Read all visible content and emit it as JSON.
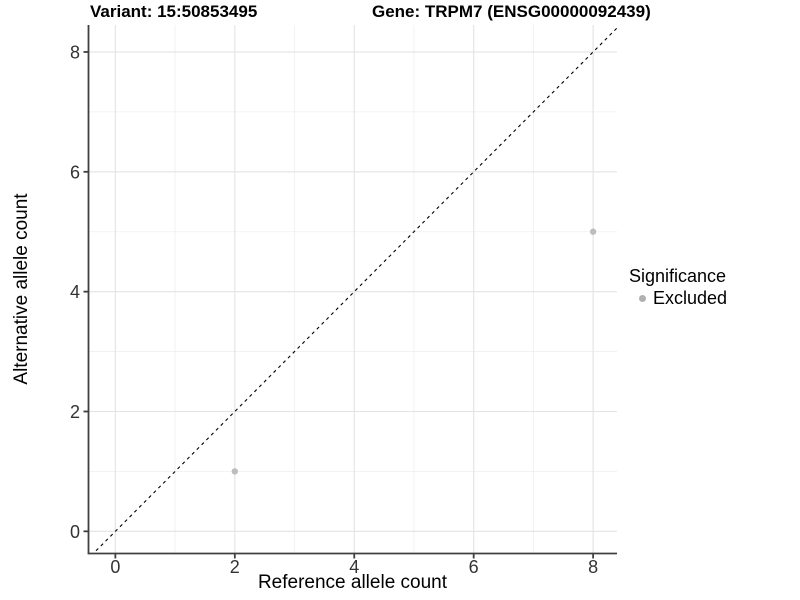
{
  "chart_data": {
    "type": "scatter",
    "titles": {
      "variant": "Variant: 15:50853495",
      "gene": "Gene: TRPM7 (ENSG00000092439)"
    },
    "xlabel": "Reference allele count",
    "ylabel": "Alternative allele count",
    "xlim": [
      -0.45,
      8.4
    ],
    "ylim": [
      -0.37,
      8.45
    ],
    "xticks": [
      0,
      2,
      4,
      6,
      8
    ],
    "yticks": [
      0,
      2,
      4,
      6,
      8
    ],
    "minor_xticks": [
      1,
      3,
      5,
      7
    ],
    "minor_yticks": [
      1,
      3,
      5,
      7
    ],
    "grid": true,
    "legend_position": "right",
    "series": [
      {
        "name": "Excluded",
        "color": "#bdbdbd",
        "points": [
          {
            "x": 2,
            "y": 1
          },
          {
            "x": 8,
            "y": 5
          }
        ]
      }
    ],
    "reference_line": {
      "type": "identity y = x",
      "style": "dashed",
      "color": "#000000"
    },
    "legend": {
      "title": "Significance",
      "entries": [
        {
          "label": "Excluded",
          "color": "#b0b0b0"
        }
      ]
    }
  },
  "colors": {
    "background": "#ffffff",
    "grid_major": "#e3e3e3",
    "grid_minor": "#efefef",
    "axis_line": "#404040",
    "tick_label": "#333333",
    "point": "#bdbdbd"
  }
}
